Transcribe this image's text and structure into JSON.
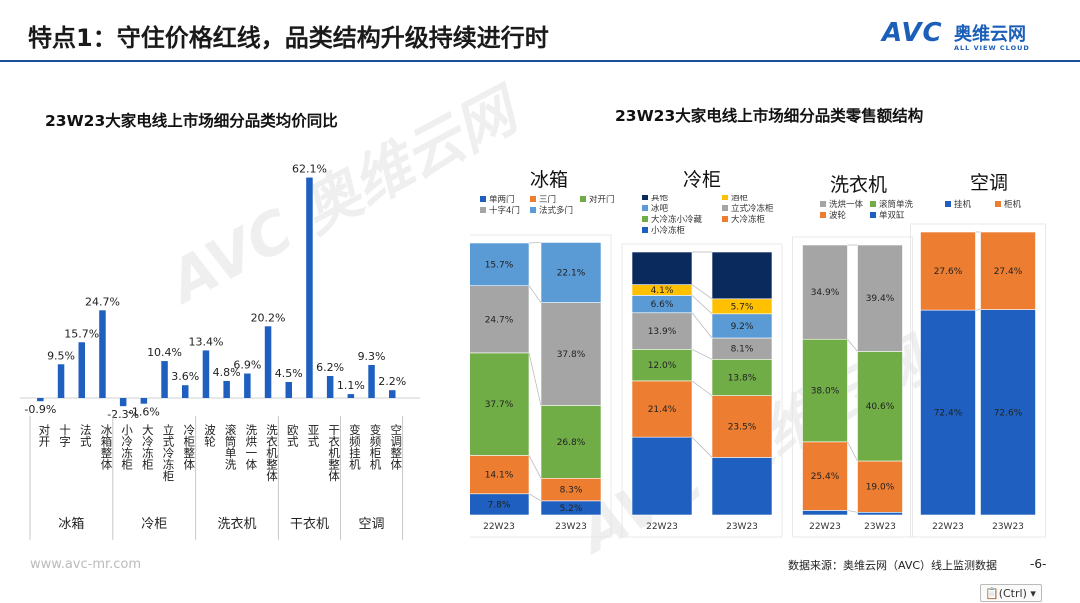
{
  "header": {
    "title": "特点1：守住价格红线，品类结构升级持续进行时",
    "logo_mark": "AVC",
    "logo_cn": "奥维云网",
    "logo_en": "ALL VIEW CLOUD"
  },
  "footer": {
    "url": "www.avc-mr.com",
    "source": "数据来源：奥维云网（AVC）线上监测数据",
    "page": "-6-",
    "ctrl_label": "(Ctrl)"
  },
  "colors": {
    "bar_blue": "#1f5fbf",
    "blue": "#1f5fbf",
    "orange": "#ed7d31",
    "green": "#70ad47",
    "gray": "#a5a5a5",
    "light_blue": "#5b9bd5",
    "yellow": "#ffc000",
    "navy": "#0a2a5e",
    "rule": "#1b4f9c"
  },
  "chart_data": [
    {
      "type": "bar",
      "title": "23W23大家电线上市场细分品类均价同比",
      "categories": [
        "对开",
        "十字",
        "法式",
        "冰箱整体",
        "小冷冻柜",
        "大冷冻柜",
        "立式冷冻柜",
        "冷柜整体",
        "波轮",
        "滚筒单洗",
        "洗烘一体",
        "洗衣机整体",
        "欧式",
        "亚式",
        "干衣机整体",
        "变频挂机",
        "变频柜机",
        "空调整体"
      ],
      "values": [
        -0.9,
        9.5,
        15.7,
        24.7,
        -2.3,
        -1.6,
        10.4,
        3.6,
        13.4,
        4.8,
        6.9,
        20.2,
        4.5,
        62.1,
        6.2,
        1.1,
        9.3,
        2.2
      ],
      "data_labels": [
        "-0.9%",
        "9.5%",
        "15.7%",
        "24.7%",
        "-2.3%",
        "-1.6%",
        "10.4%",
        "3.6%",
        "13.4%",
        "4.8%",
        "6.9%",
        "20.2%",
        "4.5%",
        "62.1%",
        "6.2%",
        "1.1%",
        "9.3%",
        "2.2%"
      ],
      "groups": [
        {
          "name": "冰箱",
          "count": 4
        },
        {
          "name": "冷柜",
          "count": 4
        },
        {
          "name": "洗衣机",
          "count": 4
        },
        {
          "name": "干衣机",
          "count": 3
        },
        {
          "name": "空调",
          "count": 3
        }
      ],
      "ylim": [
        -5,
        65
      ],
      "grid": false
    },
    {
      "type": "bar",
      "stacked": true,
      "title": "23W23大家电线上市场细分品类零售额结构",
      "panels": [
        {
          "name": "冰箱",
          "categories": [
            "22W23",
            "23W23"
          ],
          "series": [
            {
              "name": "单两门",
              "color": "#1f5fbf",
              "values": [
                7.8,
                5.2
              ]
            },
            {
              "name": "三门",
              "color": "#ed7d31",
              "values": [
                14.1,
                8.3
              ]
            },
            {
              "name": "对开门",
              "color": "#70ad47",
              "values": [
                37.7,
                26.8
              ]
            },
            {
              "name": "十字4门",
              "color": "#a5a5a5",
              "values": [
                24.7,
                37.8
              ]
            },
            {
              "name": "法式多门",
              "color": "#5b9bd5",
              "values": [
                15.7,
                22.1
              ]
            }
          ],
          "labels": [
            [
              "7.8%",
              "5.2%"
            ],
            [
              "14.1%",
              "8.3%"
            ],
            [
              "37.7%",
              "26.8%"
            ],
            [
              "24.7%",
              "37.8%"
            ],
            [
              "15.7%",
              "22.1%"
            ]
          ]
        },
        {
          "name": "冷柜",
          "categories": [
            "22W23",
            "23W23"
          ],
          "series": [
            {
              "name": "小冷冻柜",
              "color": "#1f5fbf",
              "values": [
                29.6,
                21.9
              ]
            },
            {
              "name": "大冷冻柜",
              "color": "#ed7d31",
              "values": [
                21.4,
                23.5
              ]
            },
            {
              "name": "大冷冻小冷藏",
              "color": "#70ad47",
              "values": [
                12.0,
                13.8
              ]
            },
            {
              "name": "立式冷冻柜",
              "color": "#a5a5a5",
              "values": [
                13.9,
                8.1
              ]
            },
            {
              "name": "冰吧",
              "color": "#5b9bd5",
              "values": [
                6.6,
                9.2
              ]
            },
            {
              "name": "酒柜",
              "color": "#ffc000",
              "values": [
                4.1,
                5.7
              ]
            },
            {
              "name": "其他",
              "color": "#0a2a5e",
              "values": [
                12.4,
                17.8
              ]
            }
          ],
          "labels": [
            [
              "",
              ""
            ],
            [
              "21.4%",
              "23.5%"
            ],
            [
              "12.0%",
              "13.8%"
            ],
            [
              "13.9%",
              "8.1%"
            ],
            [
              "6.6%",
              "9.2%"
            ],
            [
              "4.1%",
              "5.7%"
            ],
            [
              "",
              ""
            ]
          ]
        },
        {
          "name": "洗衣机",
          "categories": [
            "22W23",
            "23W23"
          ],
          "series": [
            {
              "name": "单双缸",
              "color": "#1f5fbf",
              "values": [
                1.7,
                1.0
              ]
            },
            {
              "name": "波轮",
              "color": "#ed7d31",
              "values": [
                25.4,
                19.0
              ]
            },
            {
              "name": "滚筒单洗",
              "color": "#70ad47",
              "values": [
                38.0,
                40.6
              ]
            },
            {
              "name": "洗烘一体",
              "color": "#a5a5a5",
              "values": [
                34.9,
                39.4
              ]
            }
          ],
          "labels": [
            [
              "",
              ""
            ],
            [
              "25.4%",
              "19.0%"
            ],
            [
              "38.0%",
              "40.6%"
            ],
            [
              "34.9%",
              "39.4%"
            ]
          ]
        },
        {
          "name": "空调",
          "categories": [
            "22W23",
            "23W23"
          ],
          "series": [
            {
              "name": "挂机",
              "color": "#1f5fbf",
              "values": [
                72.4,
                72.6
              ]
            },
            {
              "name": "柜机",
              "color": "#ed7d31",
              "values": [
                27.6,
                27.4
              ]
            }
          ],
          "labels": [
            [
              "72.4%",
              "72.6%"
            ],
            [
              "27.6%",
              "27.4%"
            ]
          ]
        }
      ]
    }
  ]
}
